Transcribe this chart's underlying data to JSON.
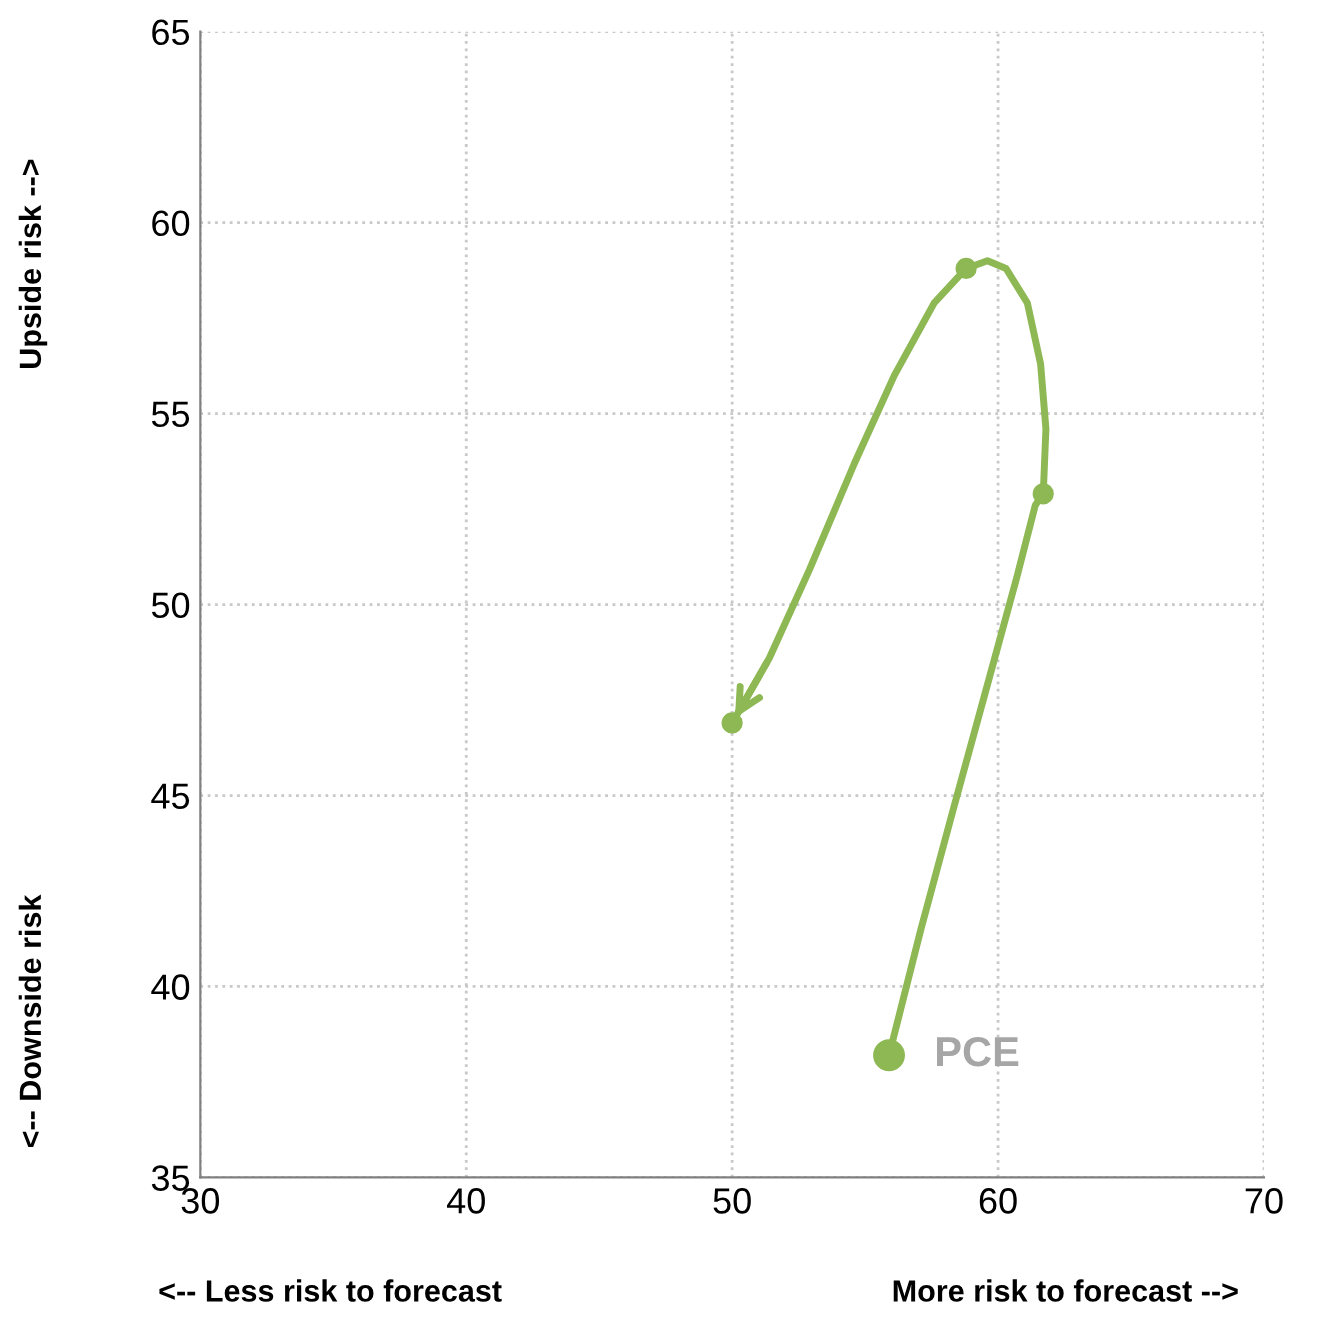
{
  "chart_data": {
    "type": "line",
    "series": [
      {
        "name": "PCE",
        "color": "#8db853",
        "x": [
          55.9,
          57.1,
          58.3,
          59.6,
          60.7,
          61.4,
          61.7,
          61.8,
          61.6,
          61.1,
          60.3,
          59.6,
          58.8,
          57.6,
          56.1,
          54.6,
          52.9,
          51.4,
          50.0
        ],
        "values": [
          38.2,
          41.5,
          44.6,
          47.9,
          50.7,
          52.6,
          52.9,
          54.6,
          56.3,
          57.9,
          58.8,
          59.0,
          58.8,
          57.9,
          56.0,
          53.7,
          50.9,
          48.6,
          46.9
        ]
      },
      {
        "type": "scatter",
        "color": "#8db853",
        "marker": "circle",
        "x": [
          55.9,
          61.7,
          58.8,
          50.0
        ],
        "values": [
          38.2,
          52.9,
          58.8,
          46.9
        ],
        "sizes": [
          1,
          0.4,
          0.4,
          0.4
        ]
      }
    ],
    "xlim": [
      30,
      70
    ],
    "ylim": [
      35,
      65
    ],
    "xticks": [
      30,
      40,
      50,
      60,
      70
    ],
    "yticks": [
      35,
      40,
      45,
      50,
      55,
      60,
      65
    ],
    "grid": true,
    "line_style": "solid",
    "annotations": [
      "<-- Less risk to forecast",
      "More risk to forecast -->",
      "<-- Downside risk",
      "Upside risk -->"
    ]
  }
}
